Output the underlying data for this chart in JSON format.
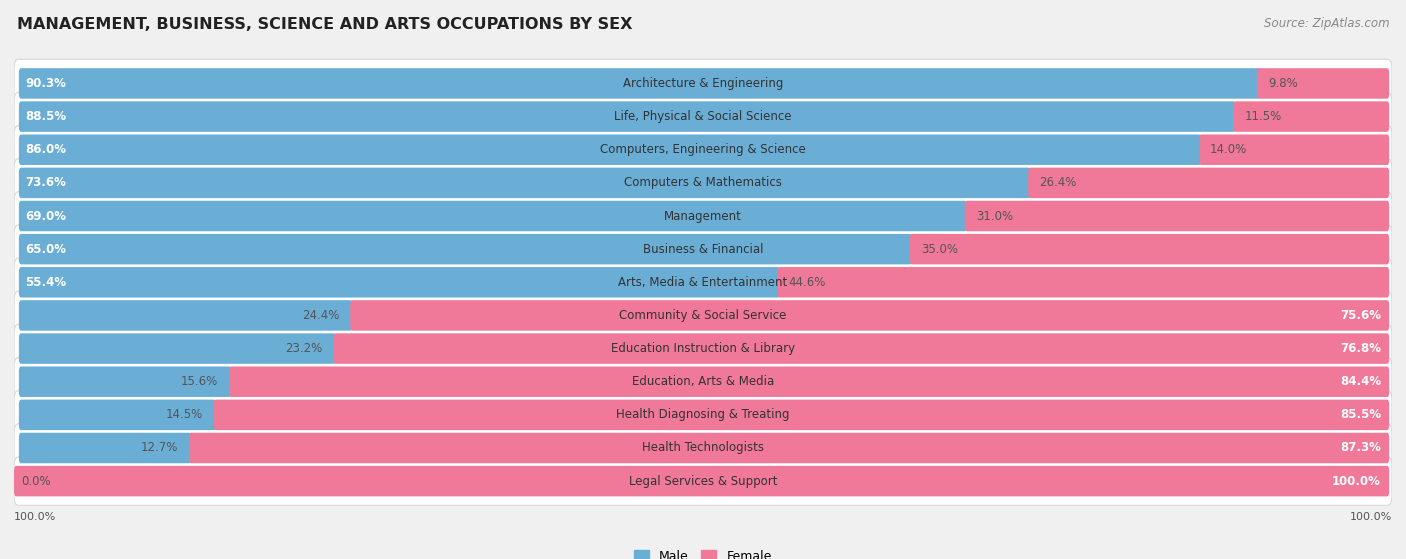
{
  "title": "MANAGEMENT, BUSINESS, SCIENCE AND ARTS OCCUPATIONS BY SEX",
  "source": "Source: ZipAtlas.com",
  "categories": [
    "Architecture & Engineering",
    "Life, Physical & Social Science",
    "Computers, Engineering & Science",
    "Computers & Mathematics",
    "Management",
    "Business & Financial",
    "Arts, Media & Entertainment",
    "Community & Social Service",
    "Education Instruction & Library",
    "Education, Arts & Media",
    "Health Diagnosing & Treating",
    "Health Technologists",
    "Legal Services & Support"
  ],
  "male": [
    90.3,
    88.5,
    86.0,
    73.6,
    69.0,
    65.0,
    55.4,
    24.4,
    23.2,
    15.6,
    14.5,
    12.7,
    0.0
  ],
  "female": [
    9.8,
    11.5,
    14.0,
    26.4,
    31.0,
    35.0,
    44.6,
    75.6,
    76.8,
    84.4,
    85.5,
    87.3,
    100.0
  ],
  "male_color": "#6aaed6",
  "female_color": "#f07899",
  "bg_color": "#f0f0f0",
  "row_color": "#ffffff",
  "row_edge_color": "#d8d8d8",
  "title_fontsize": 11.5,
  "bar_label_fontsize": 8.5,
  "cat_label_fontsize": 8.5,
  "source_fontsize": 8.5
}
